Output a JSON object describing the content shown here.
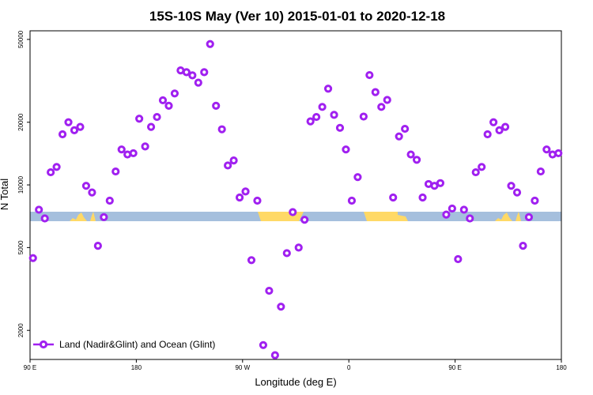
{
  "chart_data": {
    "type": "scatter",
    "title": "15S-10S May (Ver 10)   2015-01-01 to 2020-12-18",
    "xlabel": "Longitude (deg E)",
    "ylabel": "N Total",
    "y_scale": "log",
    "ylim": [
      1450,
      55000
    ],
    "x_ticks": [
      {
        "pos": 0,
        "label": "90 E"
      },
      {
        "pos": 90,
        "label": "180"
      },
      {
        "pos": 180,
        "label": "90 W"
      },
      {
        "pos": 270,
        "label": "0"
      },
      {
        "pos": 360,
        "label": "90 E"
      },
      {
        "pos": 450,
        "label": "180"
      }
    ],
    "y_ticks": [
      {
        "value": 2000,
        "label": "2000"
      },
      {
        "value": 5000,
        "label": "5000"
      },
      {
        "value": 10000,
        "label": "10000"
      },
      {
        "value": 20000,
        "label": "20000"
      },
      {
        "value": 50000,
        "label": "50000"
      }
    ],
    "legend": {
      "position": "bottom-left"
    },
    "series": [
      {
        "name": "Land (Nadir&Glint) and Ocean (Glint)",
        "color": "#a020f0",
        "points": [
          [
            2.5,
            4450
          ],
          [
            7.5,
            7600
          ],
          [
            12.5,
            6900
          ],
          [
            17.5,
            11500
          ],
          [
            22.5,
            12200
          ],
          [
            27.5,
            17500
          ],
          [
            32.5,
            20000
          ],
          [
            37.5,
            18300
          ],
          [
            42.5,
            19000
          ],
          [
            47.5,
            9900
          ],
          [
            52.5,
            9200
          ],
          [
            57.5,
            5100
          ],
          [
            62.5,
            7000
          ],
          [
            67.5,
            8400
          ],
          [
            72.5,
            11600
          ],
          [
            77.5,
            14800
          ],
          [
            82.5,
            14000
          ],
          [
            87.5,
            14200
          ],
          [
            92.5,
            20800
          ],
          [
            97.5,
            15300
          ],
          [
            102.5,
            19000
          ],
          [
            107.5,
            21200
          ],
          [
            112.5,
            25500
          ],
          [
            117.5,
            24000
          ],
          [
            122.5,
            27500
          ],
          [
            127.5,
            35500
          ],
          [
            132.5,
            34800
          ],
          [
            137.5,
            33600
          ],
          [
            142.5,
            31000
          ],
          [
            147.5,
            34800
          ],
          [
            152.5,
            47500
          ],
          [
            157.5,
            24000
          ],
          [
            162.5,
            18500
          ],
          [
            167.5,
            12400
          ],
          [
            172.5,
            13100
          ],
          [
            177.5,
            8700
          ],
          [
            182.5,
            9300
          ],
          [
            187.5,
            4350
          ],
          [
            192.5,
            8400
          ],
          [
            197.5,
            1700
          ],
          [
            202.5,
            3100
          ],
          [
            207.5,
            1520
          ],
          [
            212.5,
            2600
          ],
          [
            217.5,
            4700
          ],
          [
            222.5,
            7400
          ],
          [
            227.5,
            5000
          ],
          [
            232.5,
            6800
          ],
          [
            237.5,
            20200
          ],
          [
            242.5,
            21200
          ],
          [
            247.5,
            23700
          ],
          [
            252.5,
            29000
          ],
          [
            257.5,
            21700
          ],
          [
            262.5,
            18800
          ],
          [
            267.5,
            14800
          ],
          [
            272.5,
            8400
          ],
          [
            277.5,
            10900
          ],
          [
            282.5,
            21300
          ],
          [
            287.5,
            33700
          ],
          [
            292.5,
            27900
          ],
          [
            297.5,
            23700
          ],
          [
            302.5,
            25600
          ],
          [
            307.5,
            8700
          ],
          [
            312.5,
            17100
          ],
          [
            317.5,
            18600
          ],
          [
            322.5,
            14000
          ],
          [
            327.5,
            13200
          ],
          [
            332.5,
            8700
          ],
          [
            337.5,
            10100
          ],
          [
            342.5,
            9900
          ],
          [
            347.5,
            10200
          ],
          [
            352.5,
            7200
          ],
          [
            357.5,
            7700
          ],
          [
            362.5,
            4400
          ],
          [
            367.5,
            7600
          ],
          [
            372.5,
            6900
          ],
          [
            377.5,
            11500
          ],
          [
            382.5,
            12200
          ],
          [
            387.5,
            17500
          ],
          [
            392.5,
            20000
          ],
          [
            397.5,
            18300
          ],
          [
            402.5,
            19000
          ],
          [
            407.5,
            9900
          ],
          [
            412.5,
            9200
          ],
          [
            417.5,
            5100
          ],
          [
            422.5,
            7000
          ],
          [
            427.5,
            8400
          ],
          [
            432.5,
            11600
          ],
          [
            437.5,
            14800
          ],
          [
            442.5,
            14000
          ],
          [
            447.5,
            14200
          ]
        ]
      }
    ]
  }
}
